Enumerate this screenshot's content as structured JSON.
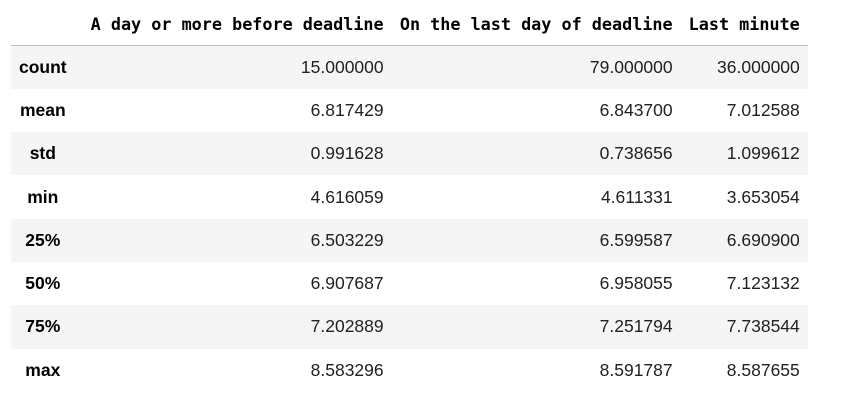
{
  "table": {
    "columns": [
      "",
      "A day or more before deadline",
      "On the last day of deadline",
      "Last minute"
    ],
    "rows": [
      {
        "label": "count",
        "values": [
          "15.000000",
          "79.000000",
          "36.000000"
        ]
      },
      {
        "label": "mean",
        "values": [
          "6.817429",
          "6.843700",
          "7.012588"
        ]
      },
      {
        "label": "std",
        "values": [
          "0.991628",
          "0.738656",
          "1.099612"
        ]
      },
      {
        "label": "min",
        "values": [
          "4.616059",
          "4.611331",
          "3.653054"
        ]
      },
      {
        "label": "25%",
        "values": [
          "6.503229",
          "6.599587",
          "6.690900"
        ]
      },
      {
        "label": "50%",
        "values": [
          "6.907687",
          "6.958055",
          "7.123132"
        ]
      },
      {
        "label": "75%",
        "values": [
          "7.202889",
          "7.251794",
          "7.738544"
        ]
      },
      {
        "label": "max",
        "values": [
          "8.583296",
          "8.591787",
          "8.587655"
        ]
      }
    ]
  }
}
